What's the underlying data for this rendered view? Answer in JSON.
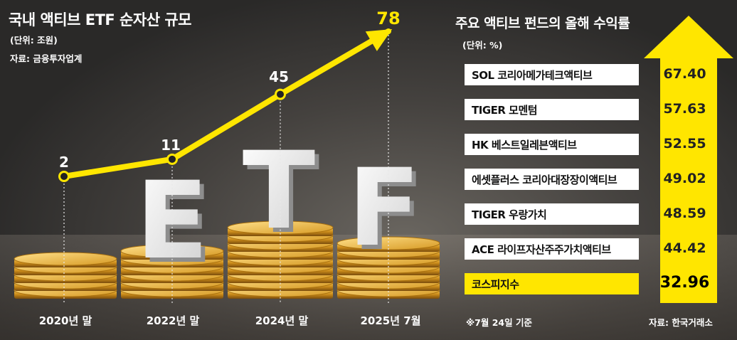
{
  "left_chart": {
    "title": "국내 액티브 ETF 순자산 규모",
    "unit": "(단위: 조원)",
    "source": "자료: 금융투자업계",
    "background_text": [
      "E",
      "T",
      "F"
    ],
    "colors": {
      "line": "#ffe600",
      "marker": "#ffe600"
    }
  },
  "right_chart": {
    "title": "주요 액티브 펀드의 올해 수익률",
    "unit": "(단위: %)",
    "note": "※7월 24일 기준",
    "source": "자료: 한국거래소",
    "colors": {
      "row": "#ffffff",
      "highlight": "#ffe600",
      "arrow": "#ffe600"
    }
  },
  "chart_data": [
    {
      "type": "line",
      "title": "국내 액티브 ETF 순자산 규모",
      "categories": [
        "2020년 말",
        "2022년 말",
        "2024년 말",
        "2025년 7월"
      ],
      "values": [
        2,
        11,
        45,
        78
      ],
      "ylabel": "(단위: 조원)",
      "ylim": [
        0,
        80
      ]
    },
    {
      "type": "bar",
      "title": "주요 액티브 펀드의 올해 수익률",
      "categories": [
        "SOL 코리아메가테크액티브",
        "TIGER 모멘텀",
        "HK 베스트일레븐액티브",
        "에셋플러스 코리아대장장이액티브",
        "TIGER 우랑가치",
        "ACE 라이프자산주주가치액티브",
        "코스피지수"
      ],
      "values": [
        67.4,
        57.63,
        52.55,
        49.02,
        48.59,
        44.42,
        32.96
      ],
      "value_labels": [
        "67.40",
        "57.63",
        "52.55",
        "49.02",
        "48.59",
        "44.42",
        "32.96"
      ],
      "highlight_index": 6,
      "ylabel": "(단위: %)"
    }
  ]
}
